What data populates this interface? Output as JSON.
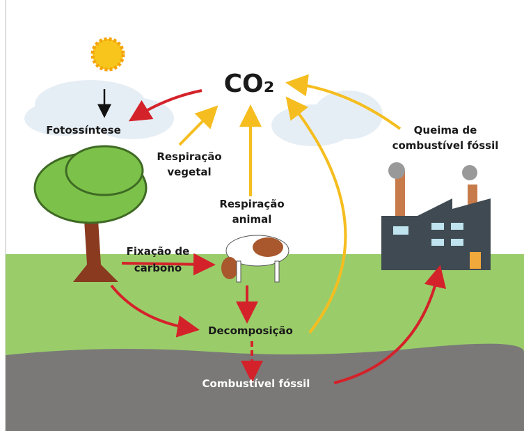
{
  "title": "CO₂",
  "nodes": [
    {
      "label": [
        "Fotossíntese"
      ]
    },
    {
      "label": [
        "Respiração",
        "vegetal"
      ]
    },
    {
      "label": [
        "Respiração",
        "animal"
      ]
    },
    {
      "label": [
        "Fixação de",
        "carbono"
      ]
    },
    {
      "label": [
        "Decomposição"
      ]
    },
    {
      "label": [
        "Combustível fóssil"
      ]
    },
    {
      "label": [
        "Queima de",
        "combustível fóssil"
      ]
    }
  ]
}
